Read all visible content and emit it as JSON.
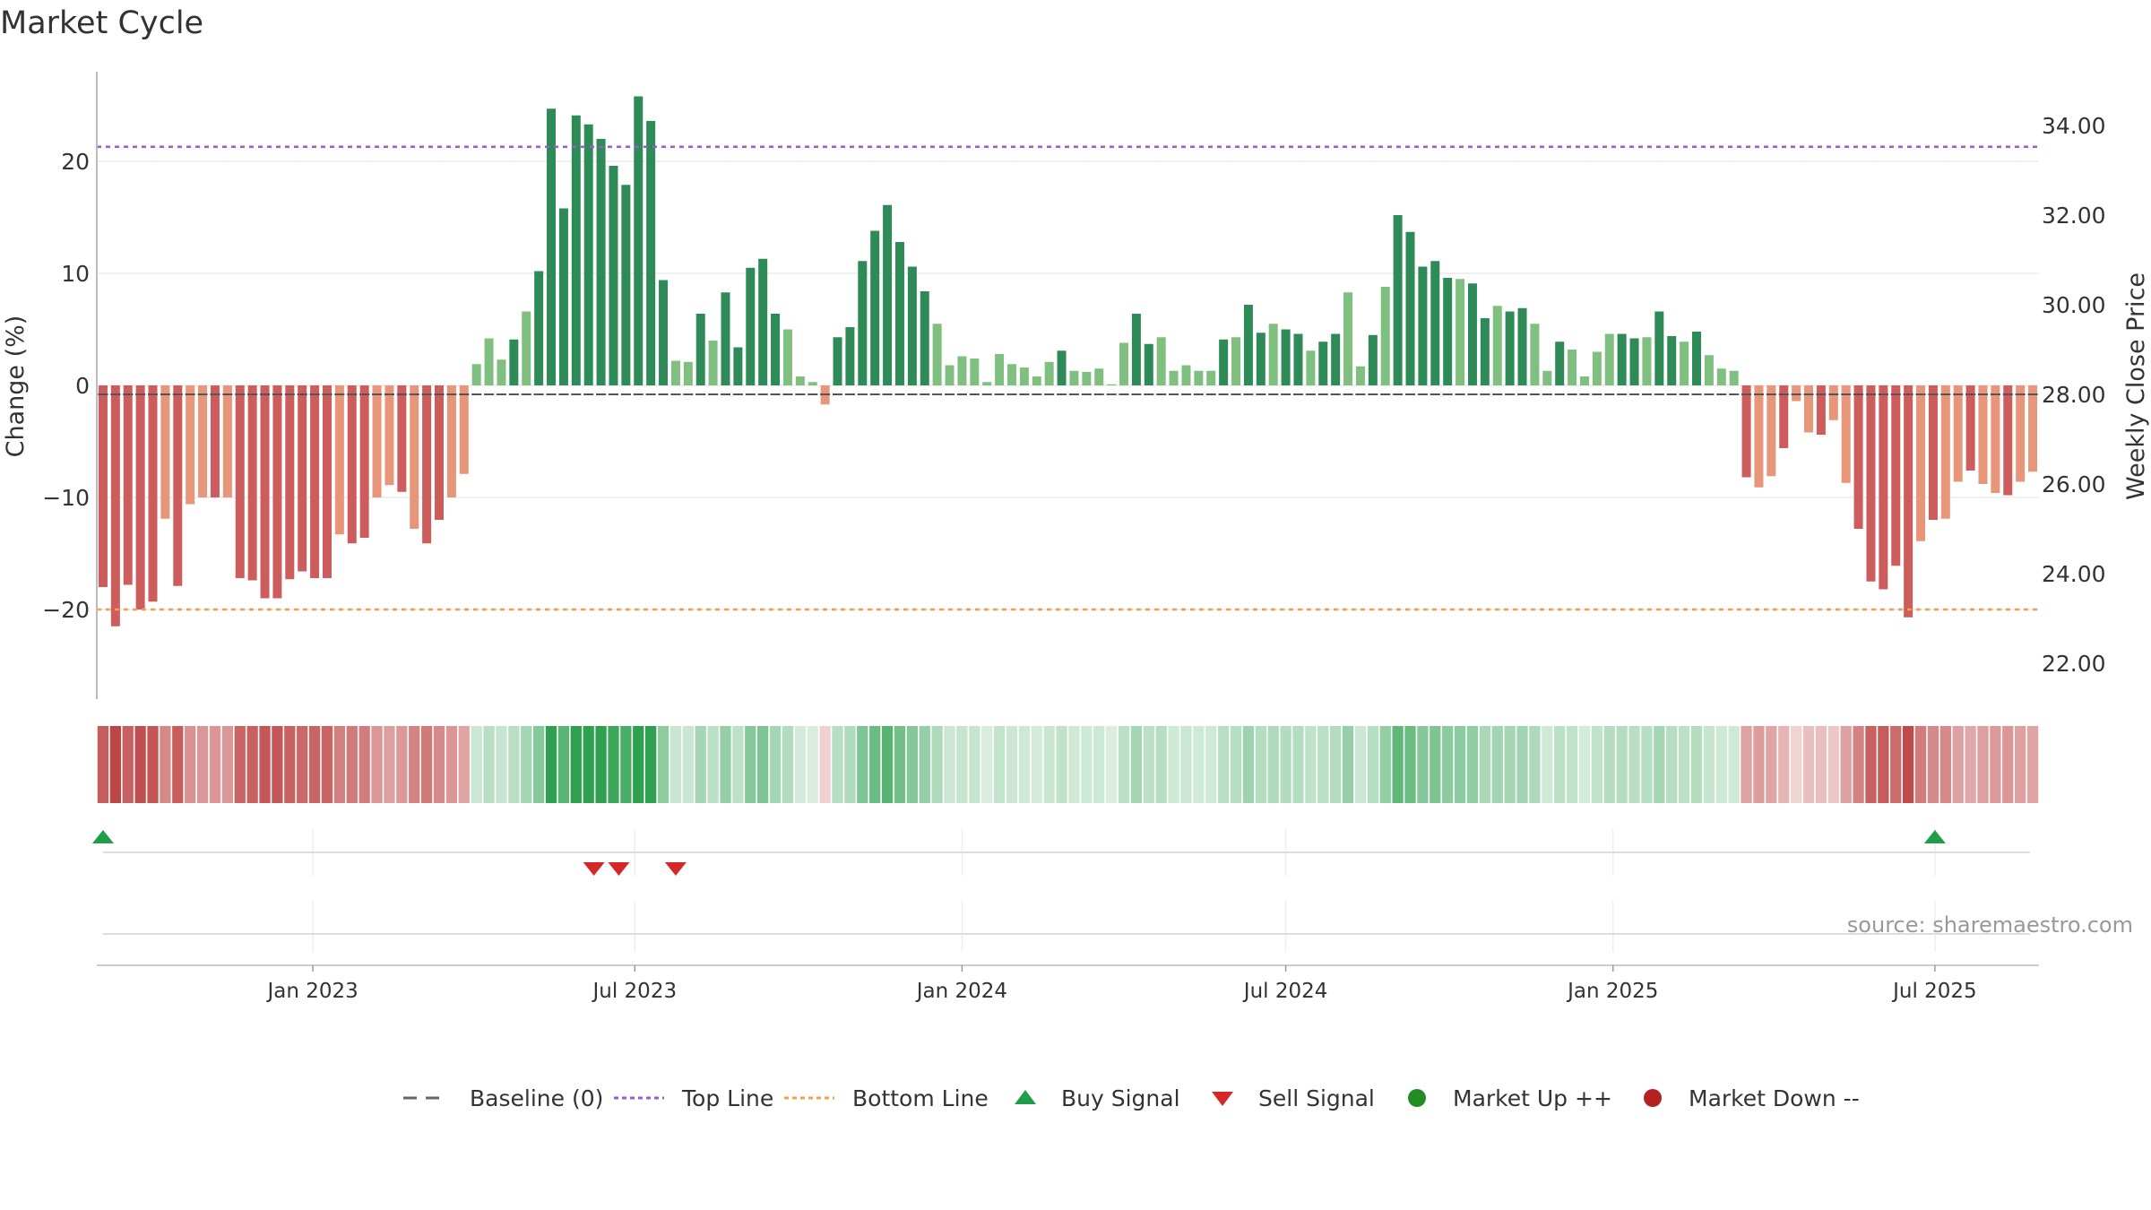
{
  "chart_data": {
    "type": "bar",
    "title": "Market Cycle",
    "ylabel": "Change (%)",
    "y2label": "Weekly Close Price",
    "ylim": [
      -28,
      28
    ],
    "y2lim": [
      21.2,
      35.2
    ],
    "yticks": [
      -20,
      -10,
      0,
      10,
      20
    ],
    "y2ticks": [
      "22.00",
      "24.00",
      "26.00",
      "28.00",
      "30.00",
      "32.00",
      "34.00"
    ],
    "x_start": "2022-09-05",
    "x_end": "2025-08-25",
    "xticks": [
      {
        "date": "2023-01-01",
        "label": "Jan 2023"
      },
      {
        "date": "2023-07-01",
        "label": "Jul 2023"
      },
      {
        "date": "2024-01-01",
        "label": "Jan 2024"
      },
      {
        "date": "2024-07-01",
        "label": "Jul 2024"
      },
      {
        "date": "2025-01-01",
        "label": "Jan 2025"
      },
      {
        "date": "2025-07-01",
        "label": "Jul 2025"
      }
    ],
    "top_line": 21.3,
    "bottom_line": -20,
    "series": [
      {
        "name": "Change (%)",
        "values": [
          -18.0,
          -21.5,
          -17.8,
          -20.0,
          -19.3,
          -11.9,
          -17.9,
          -10.6,
          -10.0,
          -10.0,
          -10.0,
          -17.2,
          -17.4,
          -19.0,
          -19.0,
          -17.3,
          -16.6,
          -17.2,
          -17.2,
          -13.3,
          -14.1,
          -13.6,
          -10.0,
          -8.9,
          -9.5,
          -12.8,
          -14.1,
          -12.0,
          -10.0,
          -7.9,
          1.9,
          4.2,
          2.3,
          4.1,
          6.6,
          10.2,
          24.7,
          15.8,
          24.1,
          23.3,
          22.0,
          19.6,
          17.9,
          25.8,
          23.6,
          9.4,
          2.2,
          2.1,
          6.4,
          4.0,
          8.3,
          3.4,
          10.5,
          11.3,
          6.4,
          5.0,
          0.8,
          0.3,
          -1.7,
          4.3,
          5.2,
          11.1,
          13.8,
          16.1,
          12.8,
          10.6,
          8.4,
          5.5,
          1.8,
          2.6,
          2.4,
          0.3,
          2.8,
          1.9,
          1.6,
          0.8,
          2.1,
          3.1,
          1.3,
          1.2,
          1.5,
          0.1,
          3.8,
          6.4,
          3.7,
          4.3,
          1.3,
          1.8,
          1.3,
          1.3,
          4.1,
          4.3,
          7.2,
          4.7,
          5.5,
          5.0,
          4.6,
          3.1,
          3.9,
          4.6,
          8.3,
          1.7,
          4.5,
          8.8,
          15.2,
          13.7,
          10.6,
          11.1,
          9.6,
          9.5,
          9.1,
          6.0,
          7.1,
          6.6,
          6.9,
          5.5,
          1.3,
          3.9,
          3.2,
          0.8,
          3.0,
          4.6,
          4.6,
          4.2,
          4.3,
          6.6,
          4.4,
          3.9,
          4.8,
          2.7,
          1.5,
          1.3,
          -8.2,
          -9.1,
          -8.1,
          -5.6,
          -1.4,
          -4.2,
          -4.4,
          -3.1,
          -8.7,
          -12.8,
          -17.5,
          -18.2,
          -16.1,
          -20.7,
          -13.9,
          -12.0,
          -11.9,
          -8.6,
          -7.6,
          -8.8,
          -9.6,
          -9.8,
          -8.6,
          -7.7
        ]
      },
      {
        "name": "Weekly Close Price",
        "values": [
          28.0,
          28.0,
          28.0,
          28.0,
          28.0,
          28.0,
          28.0,
          28.0,
          28.0,
          28.0,
          28.0,
          28.0,
          28.0,
          28.0,
          28.0,
          28.0,
          28.0,
          28.0,
          28.0,
          28.0,
          28.0,
          28.0,
          28.0,
          28.0,
          28.0,
          28.0,
          28.0,
          28.0,
          28.0,
          28.0,
          28.0,
          28.0,
          28.0,
          28.0,
          28.0,
          28.0,
          28.0,
          28.0,
          28.0,
          28.0,
          28.0,
          28.0,
          28.0,
          28.0,
          28.0,
          28.0,
          28.0,
          28.0,
          28.0,
          28.0,
          28.0,
          28.0,
          28.0,
          28.0,
          28.0,
          28.0,
          28.0,
          28.0,
          28.0,
          28.0,
          28.0,
          28.0,
          28.0,
          28.0,
          28.0,
          28.0,
          28.0,
          28.0,
          28.0,
          28.0,
          28.0,
          28.0,
          28.0,
          28.0,
          28.0,
          28.0,
          28.0,
          28.0,
          28.0,
          28.0,
          28.0,
          28.0,
          28.0,
          28.0,
          28.0,
          28.0,
          28.0,
          28.0,
          28.0,
          28.0,
          28.0,
          28.0,
          28.0,
          28.0,
          28.0,
          28.0,
          28.0,
          28.0,
          28.0,
          28.0,
          28.0,
          28.0,
          28.0,
          28.0,
          28.0,
          28.0,
          28.0,
          28.0,
          28.0,
          28.0,
          28.0,
          28.0,
          28.0,
          28.0,
          28.0,
          28.0,
          28.0,
          28.0,
          28.0,
          28.0,
          28.0,
          28.0,
          28.0,
          28.0,
          28.0,
          28.0,
          28.0,
          28.0,
          28.0,
          28.0,
          28.0,
          28.0,
          28.0,
          28.0,
          28.0,
          28.0,
          28.0,
          28.0,
          28.0,
          28.0,
          28.0,
          28.0,
          28.0,
          28.0,
          28.0,
          28.0,
          28.0,
          28.0,
          28.0,
          28.0,
          28.0,
          28.0,
          28.0,
          28.0,
          28.0,
          28.0,
          28.0,
          28.0
        ]
      }
    ],
    "buy_signals": [
      {
        "date": "2022-09-05"
      },
      {
        "date": "2025-07-01"
      }
    ],
    "sell_signals": [
      {
        "date": "2023-06-08"
      },
      {
        "date": "2023-06-22"
      },
      {
        "date": "2023-07-24"
      }
    ],
    "legend": {
      "position": "bottom-center",
      "items": [
        {
          "label": "Baseline (0)",
          "symbol": "dash"
        },
        {
          "label": "Top Line",
          "symbol": "dot-purple"
        },
        {
          "label": "Bottom Line",
          "symbol": "dot-orange"
        },
        {
          "label": "Buy Signal",
          "symbol": "triangle-up"
        },
        {
          "label": "Sell Signal",
          "symbol": "triangle-down"
        },
        {
          "label": "Market Up ++",
          "symbol": "circle-green"
        },
        {
          "label": "Market Down --",
          "symbol": "circle-red"
        }
      ]
    },
    "source_note": "source: sharemaestro.com",
    "grid": true
  },
  "colors": {
    "up_strong": "#2e8b57",
    "up_light": "#7fbf7f",
    "down_strong": "#cd5c5c",
    "down_light": "#e8967a",
    "top_line": "#9b59d0",
    "bottom_line": "#f0a050",
    "buy": "#1e9e4a",
    "sell": "#d62728",
    "market_up": "#228b22",
    "market_down": "#b22222",
    "baseline": "#666666"
  }
}
